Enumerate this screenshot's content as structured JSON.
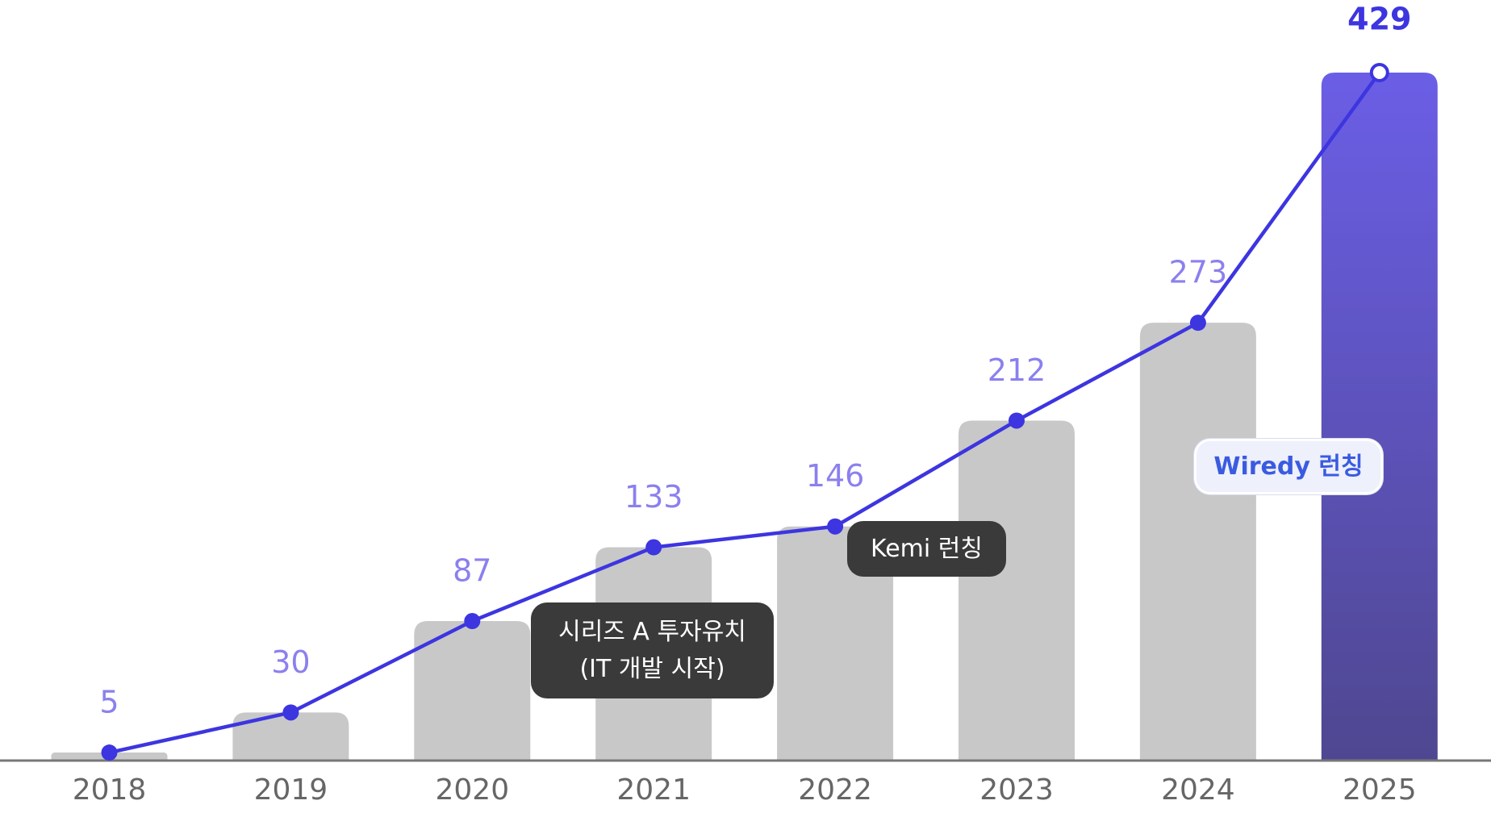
{
  "chart_data": {
    "type": "bar-line",
    "categories": [
      "2018",
      "2019",
      "2020",
      "2021",
      "2022",
      "2023",
      "2024",
      "2025"
    ],
    "values": [
      5,
      30,
      87,
      133,
      146,
      212,
      273,
      429
    ],
    "bar_color": "#c8c8c8",
    "highlight_color": [
      "#6b5ee6",
      "#4f4790"
    ],
    "line_color": "#3d35e0",
    "label_color": "#8b80ee",
    "annotations": [
      {
        "lines": [
          "시리즈 A 투자유치",
          "(IT 개발 시작)"
        ]
      },
      {
        "lines": [
          "Kemi 런칭"
        ]
      },
      {
        "lines": [
          "Wiredy 런칭"
        ]
      }
    ]
  }
}
